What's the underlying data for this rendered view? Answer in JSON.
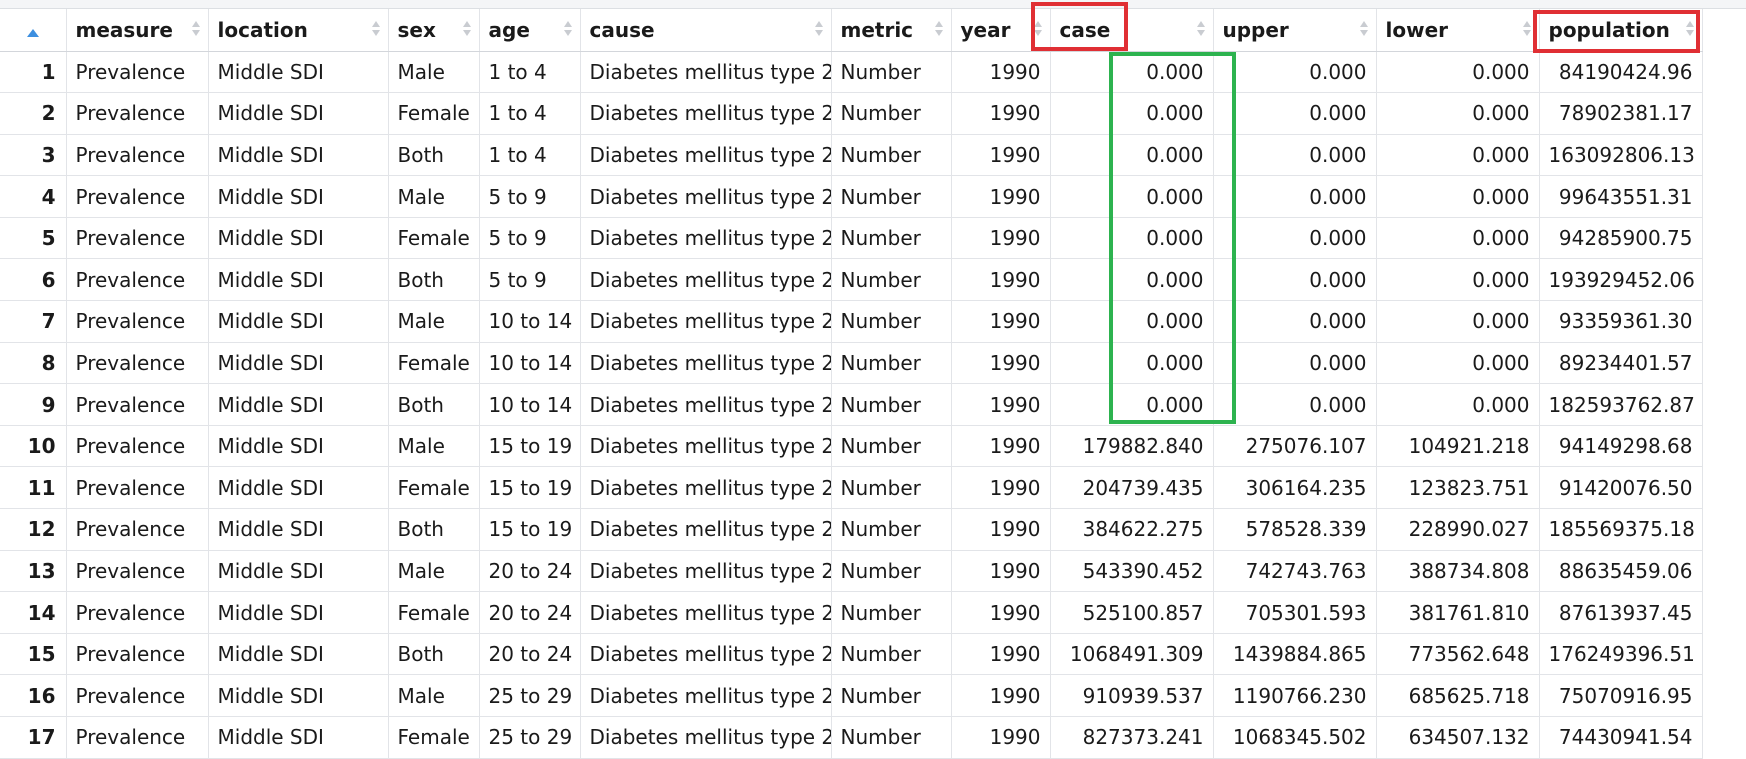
{
  "table": {
    "columns": [
      {
        "key": "rownum",
        "label": ""
      },
      {
        "key": "measure",
        "label": "measure"
      },
      {
        "key": "location",
        "label": "location"
      },
      {
        "key": "sex",
        "label": "sex"
      },
      {
        "key": "age",
        "label": "age"
      },
      {
        "key": "cause",
        "label": "cause"
      },
      {
        "key": "metric",
        "label": "metric"
      },
      {
        "key": "year",
        "label": "year"
      },
      {
        "key": "case",
        "label": "case"
      },
      {
        "key": "upper",
        "label": "upper"
      },
      {
        "key": "lower",
        "label": "lower"
      },
      {
        "key": "population",
        "label": "population"
      }
    ],
    "rows": [
      [
        "1",
        "Prevalence",
        "Middle SDI",
        "Male",
        "1 to 4",
        "Diabetes mellitus type 2",
        "Number",
        "1990",
        "0.000",
        "0.000",
        "0.000",
        "84190424.96"
      ],
      [
        "2",
        "Prevalence",
        "Middle SDI",
        "Female",
        "1 to 4",
        "Diabetes mellitus type 2",
        "Number",
        "1990",
        "0.000",
        "0.000",
        "0.000",
        "78902381.17"
      ],
      [
        "3",
        "Prevalence",
        "Middle SDI",
        "Both",
        "1 to 4",
        "Diabetes mellitus type 2",
        "Number",
        "1990",
        "0.000",
        "0.000",
        "0.000",
        "163092806.13"
      ],
      [
        "4",
        "Prevalence",
        "Middle SDI",
        "Male",
        "5 to 9",
        "Diabetes mellitus type 2",
        "Number",
        "1990",
        "0.000",
        "0.000",
        "0.000",
        "99643551.31"
      ],
      [
        "5",
        "Prevalence",
        "Middle SDI",
        "Female",
        "5 to 9",
        "Diabetes mellitus type 2",
        "Number",
        "1990",
        "0.000",
        "0.000",
        "0.000",
        "94285900.75"
      ],
      [
        "6",
        "Prevalence",
        "Middle SDI",
        "Both",
        "5 to 9",
        "Diabetes mellitus type 2",
        "Number",
        "1990",
        "0.000",
        "0.000",
        "0.000",
        "193929452.06"
      ],
      [
        "7",
        "Prevalence",
        "Middle SDI",
        "Male",
        "10 to 14",
        "Diabetes mellitus type 2",
        "Number",
        "1990",
        "0.000",
        "0.000",
        "0.000",
        "93359361.30"
      ],
      [
        "8",
        "Prevalence",
        "Middle SDI",
        "Female",
        "10 to 14",
        "Diabetes mellitus type 2",
        "Number",
        "1990",
        "0.000",
        "0.000",
        "0.000",
        "89234401.57"
      ],
      [
        "9",
        "Prevalence",
        "Middle SDI",
        "Both",
        "10 to 14",
        "Diabetes mellitus type 2",
        "Number",
        "1990",
        "0.000",
        "0.000",
        "0.000",
        "182593762.87"
      ],
      [
        "10",
        "Prevalence",
        "Middle SDI",
        "Male",
        "15 to 19",
        "Diabetes mellitus type 2",
        "Number",
        "1990",
        "179882.840",
        "275076.107",
        "104921.218",
        "94149298.68"
      ],
      [
        "11",
        "Prevalence",
        "Middle SDI",
        "Female",
        "15 to 19",
        "Diabetes mellitus type 2",
        "Number",
        "1990",
        "204739.435",
        "306164.235",
        "123823.751",
        "91420076.50"
      ],
      [
        "12",
        "Prevalence",
        "Middle SDI",
        "Both",
        "15 to 19",
        "Diabetes mellitus type 2",
        "Number",
        "1990",
        "384622.275",
        "578528.339",
        "228990.027",
        "185569375.18"
      ],
      [
        "13",
        "Prevalence",
        "Middle SDI",
        "Male",
        "20 to 24",
        "Diabetes mellitus type 2",
        "Number",
        "1990",
        "543390.452",
        "742743.763",
        "388734.808",
        "88635459.06"
      ],
      [
        "14",
        "Prevalence",
        "Middle SDI",
        "Female",
        "20 to 24",
        "Diabetes mellitus type 2",
        "Number",
        "1990",
        "525100.857",
        "705301.593",
        "381761.810",
        "87613937.45"
      ],
      [
        "15",
        "Prevalence",
        "Middle SDI",
        "Both",
        "20 to 24",
        "Diabetes mellitus type 2",
        "Number",
        "1990",
        "1068491.309",
        "1439884.865",
        "773562.648",
        "176249396.51"
      ],
      [
        "16",
        "Prevalence",
        "Middle SDI",
        "Male",
        "25 to 29",
        "Diabetes mellitus type 2",
        "Number",
        "1990",
        "910939.537",
        "1190766.230",
        "685625.718",
        "75070916.95"
      ],
      [
        "17",
        "Prevalence",
        "Middle SDI",
        "Female",
        "25 to 29",
        "Diabetes mellitus type 2",
        "Number",
        "1990",
        "827373.241",
        "1068345.502",
        "634507.132",
        "74430941.54"
      ]
    ]
  },
  "annotations": {
    "red_color": "#e02f34",
    "green_color": "#2db34f"
  }
}
